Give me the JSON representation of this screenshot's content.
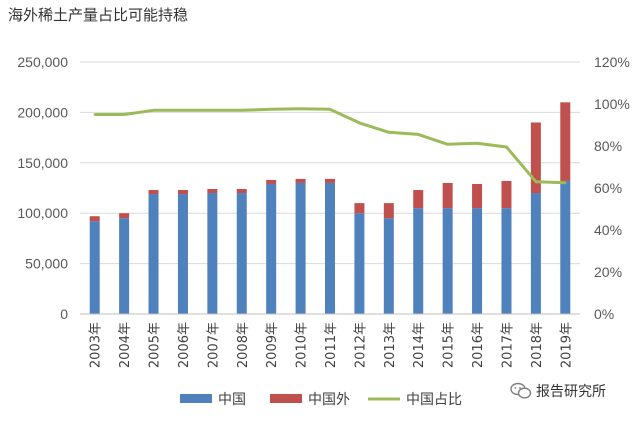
{
  "title": "海外稀土产量占比可能持稳",
  "watermark": {
    "text": "报告研究所",
    "icon": "wechat-icon"
  },
  "colors": {
    "china": "#4F81BD",
    "outside": "#C0504D",
    "share": "#9BBB59",
    "grid": "#D9D9D9",
    "axis_text": "#595959"
  },
  "chart_data": {
    "type": "bar",
    "stacked": true,
    "title": "海外稀土产量占比可能持稳",
    "categories": [
      "2003年",
      "2004年",
      "2005年",
      "2006年",
      "2007年",
      "2008年",
      "2009年",
      "2010年",
      "2011年",
      "2012年",
      "2013年",
      "2014年",
      "2015年",
      "2016年",
      "2017年",
      "2018年",
      "2019年"
    ],
    "series": [
      {
        "name": "中国",
        "kind": "bar",
        "axis": "left",
        "values": [
          92000,
          95000,
          119000,
          119000,
          120000,
          120000,
          129000,
          130000,
          130000,
          100000,
          95000,
          105000,
          105000,
          105000,
          105000,
          120000,
          132000
        ]
      },
      {
        "name": "中国外",
        "kind": "bar",
        "axis": "left",
        "values": [
          5000,
          5000,
          4000,
          4000,
          4000,
          4000,
          4000,
          4000,
          4000,
          10000,
          15000,
          18000,
          25000,
          24000,
          27000,
          70000,
          78000
        ]
      },
      {
        "name": "中国占比",
        "kind": "line",
        "axis": "right",
        "values": [
          0.95,
          0.95,
          0.97,
          0.97,
          0.97,
          0.97,
          0.975,
          0.977,
          0.975,
          0.91,
          0.865,
          0.855,
          0.808,
          0.813,
          0.795,
          0.63,
          0.625
        ]
      }
    ],
    "yleft": {
      "min": 0,
      "max": 250000,
      "ticks": [
        "0",
        "50,000",
        "100,000",
        "150,000",
        "200,000",
        "250,000"
      ]
    },
    "yright": {
      "min": 0,
      "max": 1.2,
      "ticks": [
        "0%",
        "20%",
        "40%",
        "60%",
        "80%",
        "100%",
        "120%"
      ]
    },
    "grid": true,
    "legend": "bottom"
  }
}
